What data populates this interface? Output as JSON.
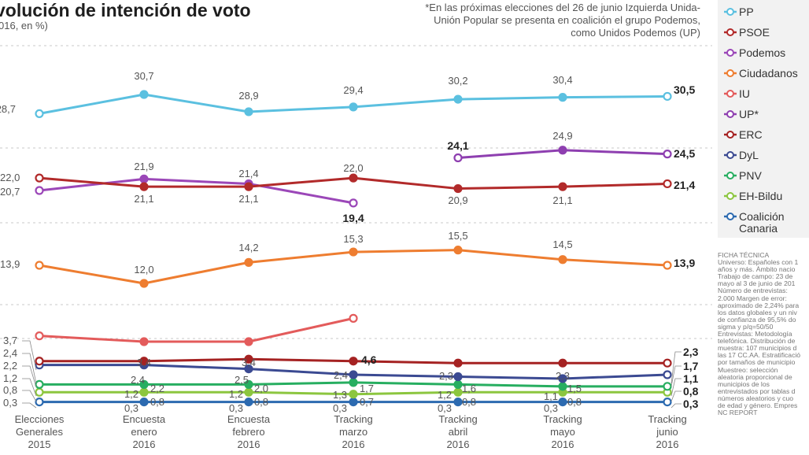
{
  "title": "volución de intención de voto",
  "subtitle": "016, en %)",
  "note": "*En las próximas elecciones del 26 de junio Izquierda Unida-Unión Popular se presenta en coalición el grupo Podemos, como Unidos Podemos (UP)",
  "chart_data": {
    "type": "line",
    "categories": [
      "Elecciones Generales 2015",
      "Encuesta enero 2016",
      "Encuesta febrero 2016",
      "Tracking marzo 2016",
      "Tracking abril 2016",
      "Tracking mayo 2016",
      "Tracking junio 2016"
    ],
    "category_lines": [
      [
        "Elecciones",
        "Generales",
        "2015"
      ],
      [
        "Encuesta",
        "enero",
        "2016"
      ],
      [
        "Encuesta",
        "febrero",
        "2016"
      ],
      [
        "Tracking",
        "marzo",
        "2016"
      ],
      [
        "Tracking",
        "abril",
        "2016"
      ],
      [
        "Tracking",
        "mayo",
        "2016"
      ],
      [
        "Tracking",
        "junio",
        "2016"
      ]
    ],
    "series": [
      {
        "name": "PP",
        "color": "#5bc0e0",
        "values": [
          28.7,
          30.7,
          28.9,
          29.4,
          30.2,
          30.4,
          30.5
        ]
      },
      {
        "name": "PSOE",
        "color": "#b22a2a",
        "values": [
          22.0,
          21.1,
          21.1,
          22.0,
          20.9,
          21.1,
          21.4
        ]
      },
      {
        "name": "Podemos",
        "color": "#9b47b8",
        "values": [
          20.7,
          21.9,
          21.4,
          19.4,
          null,
          null,
          null
        ]
      },
      {
        "name": "Ciudadanos",
        "color": "#ee7d30",
        "values": [
          13.9,
          12.0,
          14.2,
          15.3,
          15.5,
          14.5,
          13.9
        ]
      },
      {
        "name": "IU",
        "color": "#e35b5b",
        "values": [
          3.7,
          3.4,
          3.4,
          4.6,
          null,
          null,
          null
        ]
      },
      {
        "name": "UP*",
        "color": "#8e3fb0",
        "values": [
          null,
          null,
          null,
          null,
          24.1,
          24.9,
          24.5
        ]
      },
      {
        "name": "ERC",
        "color": "#a52222",
        "values": [
          2.4,
          2.4,
          2.5,
          2.4,
          2.3,
          2.3,
          2.3
        ]
      },
      {
        "name": "DyL",
        "color": "#3b4a92",
        "values": [
          2.2,
          2.2,
          2.0,
          1.7,
          1.6,
          1.5,
          1.7
        ]
      },
      {
        "name": "PNV",
        "color": "#27ae60",
        "values": [
          1.2,
          1.2,
          1.2,
          1.3,
          1.2,
          1.1,
          1.1
        ]
      },
      {
        "name": "EH-Bildu",
        "color": "#8cc63f",
        "values": [
          0.8,
          0.8,
          0.8,
          0.7,
          0.8,
          0.8,
          0.8
        ]
      },
      {
        "name": "Coalición Canaria",
        "color": "#2c6ab0",
        "values": [
          0.3,
          0.3,
          0.3,
          0.3,
          0.3,
          0.3,
          0.3
        ]
      }
    ],
    "labels": [
      {
        "series": "PP",
        "values": [
          "28,7",
          "30,7",
          "28,9",
          "29,4",
          "30,2",
          "30,4",
          "30,5"
        ]
      },
      {
        "series": "PSOE",
        "values": [
          "22,0",
          "21,1",
          "21,1",
          "22,0",
          "20,9",
          "21,1",
          "21,4"
        ]
      },
      {
        "series": "Podemos",
        "values": [
          "20,7",
          "21,9",
          "21,4",
          "19,4"
        ]
      },
      {
        "series": "UP*",
        "values": [
          "24,1",
          "24,9",
          "24,5"
        ]
      },
      {
        "series": "Ciudadanos",
        "values": [
          "13,9",
          "12,0",
          "14,2",
          "15,3",
          "15,5",
          "14,5",
          "13,9"
        ]
      },
      {
        "series": "IU",
        "values": [
          "3,4",
          "3,4",
          "4,6"
        ]
      },
      {
        "series": "ERC",
        "values": [
          "2,4",
          "2,5",
          "2,4",
          "2,3",
          "2,3"
        ]
      },
      {
        "series": "DyL",
        "values": [
          "2,2",
          "2,0",
          "1,7",
          "1,6",
          "1,5"
        ]
      },
      {
        "series": "PNV",
        "values": [
          "1,2",
          "1,2",
          "1,3",
          "1,2",
          "1,1"
        ]
      },
      {
        "series": "EH-Bildu",
        "values": [
          "0,8",
          "0,8",
          "0,7",
          "0,8",
          "0,8"
        ]
      },
      {
        "series": "Coalición Canaria",
        "values": [
          "0,3",
          "0,3",
          "0,3",
          "0,3",
          "0,3"
        ]
      },
      {
        "series": "left",
        "values": [
          "3,7",
          "2,4",
          "2,2",
          "1,2",
          "0,8",
          "0,3"
        ]
      },
      {
        "series": "right",
        "values": [
          "2,3",
          "1,7",
          "1,1",
          "0,8",
          "0,3"
        ]
      }
    ]
  },
  "legend": [
    {
      "name": "PP",
      "color": "#5bc0e0"
    },
    {
      "name": "PSOE",
      "color": "#b22a2a"
    },
    {
      "name": "Podemos",
      "color": "#9b47b8"
    },
    {
      "name": "Ciudadanos",
      "color": "#ee7d30"
    },
    {
      "name": "IU",
      "color": "#e35b5b"
    },
    {
      "name": "UP*",
      "color": "#8e3fb0"
    },
    {
      "name": "ERC",
      "color": "#a52222"
    },
    {
      "name": "DyL",
      "color": "#3b4a92"
    },
    {
      "name": "PNV",
      "color": "#27ae60"
    },
    {
      "name": "EH-Bildu",
      "color": "#8cc63f"
    },
    {
      "name": "Coalición Canaria",
      "color": "#2c6ab0"
    }
  ],
  "ficha": [
    "FICHA TÉCNICA",
    "Universo: Españoles con 1",
    "años y más. Ámbito nacio",
    "Trabajo de campo: 23 de",
    "mayo al 3 de junio de 201",
    "Número de entrevistas:",
    "2.000 Margen de error:",
    "aproximado de 2,24% para",
    "los datos globales y un niv",
    "de confianza de 95,5% do",
    "sigma y p/q=50/50",
    "Entrevistas: Metodología",
    "telefónica. Distribución de",
    "muestra: 107 municipios d",
    "las 17 CC.AA. Estratificació",
    "por tamaños de municipio",
    "Muestreo: selección",
    "aleatoria proporcional de",
    "municipios de los",
    "entrevistados por tablas d",
    "números aleatorios y cuo",
    "de edad y género. Empres",
    "NC REPORT"
  ]
}
